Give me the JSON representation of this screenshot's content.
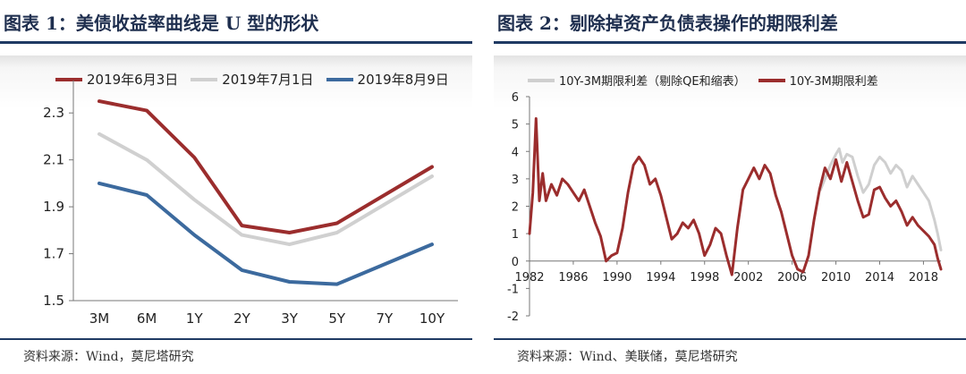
{
  "left_panel": {
    "title": "图表 1：美债收益率曲线是 U 型的形状",
    "source": "资料来源：Wind，莫尼塔研究"
  },
  "right_panel": {
    "title": "图表 2：剔除掉资产负债表操作的期限利差",
    "source": "资料来源：Wind、美联储，莫尼塔研究"
  },
  "chart_data": [
    {
      "type": "line",
      "title": "图表 1：美债收益率曲线是 U 型的形状",
      "categories": [
        "3M",
        "6M",
        "1Y",
        "2Y",
        "3Y",
        "5Y",
        "7Y",
        "10Y"
      ],
      "y_ticks": [
        "1.5",
        "1.7",
        "1.9",
        "2.1",
        "2.3"
      ],
      "ylim": [
        1.5,
        2.4
      ],
      "grid": false,
      "legend_position": "top",
      "series": [
        {
          "name": "2019年6月3日",
          "color": "#9b2d2d",
          "values": [
            2.35,
            2.31,
            2.11,
            1.82,
            1.79,
            1.83,
            null,
            2.07
          ]
        },
        {
          "name": "2019年7月1日",
          "color": "#d0d0d0",
          "values": [
            2.21,
            2.1,
            1.93,
            1.78,
            1.74,
            1.79,
            null,
            2.03
          ]
        },
        {
          "name": "2019年8月9日",
          "color": "#3c6a9e",
          "values": [
            2.0,
            1.95,
            1.78,
            1.63,
            1.58,
            1.57,
            null,
            1.74
          ]
        }
      ]
    },
    {
      "type": "line",
      "title": "图表 2：剔除掉资产负债表操作的期限利差",
      "x_ticks": [
        "1982",
        "1986",
        "1990",
        "1994",
        "1998",
        "2002",
        "2006",
        "2010",
        "2014",
        "2018"
      ],
      "y_ticks": [
        "-2",
        "-1",
        "0",
        "1",
        "2",
        "3",
        "4",
        "5",
        "6"
      ],
      "xlim": [
        1982,
        2019.6
      ],
      "ylim": [
        -2,
        6
      ],
      "grid": false,
      "legend_position": "top",
      "series": [
        {
          "name": "10Y-3M期限利差（剔除QE和缩表）",
          "color": "#cfcfcf",
          "x": [
            2008.6,
            2009.0,
            2009.5,
            2010.0,
            2010.3,
            2010.6,
            2011.0,
            2011.5,
            2012.0,
            2012.5,
            2013.0,
            2013.5,
            2014.0,
            2014.5,
            2015.0,
            2015.5,
            2016.0,
            2016.5,
            2017.0,
            2017.5,
            2018.0,
            2018.5,
            2019.0,
            2019.3,
            2019.6
          ],
          "y": [
            2.6,
            3.0,
            3.5,
            3.9,
            4.1,
            3.6,
            3.9,
            3.8,
            3.1,
            2.5,
            2.8,
            3.5,
            3.8,
            3.6,
            3.2,
            3.5,
            3.3,
            2.7,
            3.1,
            2.8,
            2.5,
            2.2,
            1.5,
            1.0,
            0.4
          ]
        },
        {
          "name": "10Y-3M期限利差",
          "color": "#9b2d2d",
          "x": [
            1982.0,
            1982.3,
            1982.6,
            1982.9,
            1983.2,
            1983.5,
            1984.0,
            1984.5,
            1985.0,
            1985.5,
            1986.0,
            1986.5,
            1987.0,
            1987.5,
            1988.0,
            1988.5,
            1989.0,
            1989.5,
            1990.0,
            1990.5,
            1991.0,
            1991.5,
            1992.0,
            1992.5,
            1993.0,
            1993.5,
            1994.0,
            1994.5,
            1995.0,
            1995.5,
            1996.0,
            1996.5,
            1997.0,
            1997.5,
            1998.0,
            1998.5,
            1999.0,
            1999.5,
            2000.0,
            2000.5,
            2001.0,
            2001.5,
            2002.0,
            2002.5,
            2003.0,
            2003.5,
            2004.0,
            2004.5,
            2005.0,
            2005.5,
            2006.0,
            2006.5,
            2007.0,
            2007.5,
            2008.0,
            2008.5,
            2009.0,
            2009.5,
            2010.0,
            2010.5,
            2011.0,
            2011.5,
            2012.0,
            2012.5,
            2013.0,
            2013.5,
            2014.0,
            2014.5,
            2015.0,
            2015.5,
            2016.0,
            2016.5,
            2017.0,
            2017.5,
            2018.0,
            2018.5,
            2019.0,
            2019.3,
            2019.6
          ],
          "y": [
            1.0,
            2.5,
            5.2,
            2.2,
            3.2,
            2.2,
            2.8,
            2.4,
            3.0,
            2.8,
            2.5,
            2.2,
            2.6,
            2.0,
            1.4,
            0.9,
            0.0,
            0.2,
            0.3,
            1.2,
            2.5,
            3.5,
            3.8,
            3.5,
            2.8,
            3.0,
            2.4,
            1.6,
            0.8,
            1.0,
            1.4,
            1.2,
            1.5,
            1.0,
            0.2,
            0.6,
            1.2,
            1.0,
            0.2,
            -0.5,
            1.2,
            2.6,
            3.0,
            3.4,
            3.0,
            3.5,
            3.2,
            2.4,
            1.8,
            1.0,
            0.2,
            -0.3,
            -0.4,
            0.2,
            1.5,
            2.6,
            3.4,
            3.0,
            3.7,
            2.9,
            3.6,
            2.9,
            2.2,
            1.6,
            1.7,
            2.6,
            2.7,
            2.3,
            2.0,
            2.2,
            1.8,
            1.3,
            1.6,
            1.3,
            1.1,
            0.9,
            0.6,
            0.1,
            -0.3
          ]
        }
      ]
    }
  ]
}
